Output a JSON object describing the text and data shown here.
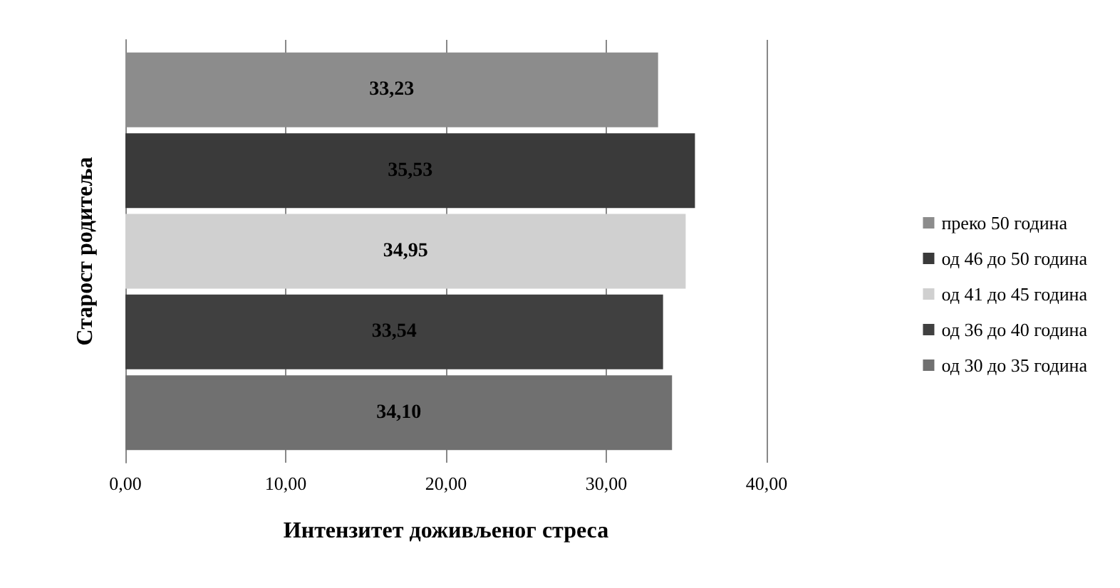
{
  "chart_data": {
    "type": "bar",
    "orientation": "horizontal",
    "xlabel": "Интензитет доживљеног стреса",
    "ylabel": "Старост родитеља",
    "categories": [
      null
    ],
    "series": [
      {
        "name": "преко 50 година",
        "color": "#8c8c8c",
        "values": [
          33.23
        ],
        "value_labels": [
          "33,23"
        ]
      },
      {
        "name": "од 46 до 50 година",
        "color": "#3a3a3a",
        "values": [
          35.53
        ],
        "value_labels": [
          "35,53"
        ]
      },
      {
        "name": "од 41 до 45 година",
        "color": "#d0d0d0",
        "values": [
          34.95
        ],
        "value_labels": [
          "34,95"
        ]
      },
      {
        "name": "од 36 до 40 година",
        "color": "#404040",
        "values": [
          33.54
        ],
        "value_labels": [
          "33,54"
        ]
      },
      {
        "name": "од 30 до 35 година",
        "color": "#707070",
        "values": [
          34.1
        ],
        "value_labels": [
          "34,10"
        ]
      }
    ],
    "xlim": [
      0,
      40
    ],
    "xticks": [
      {
        "value": 0,
        "label": "0,00"
      },
      {
        "value": 10,
        "label": "10,00"
      },
      {
        "value": 20,
        "label": "20,00"
      },
      {
        "value": 30,
        "label": "30,00"
      },
      {
        "value": 40,
        "label": "40,00"
      }
    ],
    "grid": "x",
    "legend": "right"
  }
}
